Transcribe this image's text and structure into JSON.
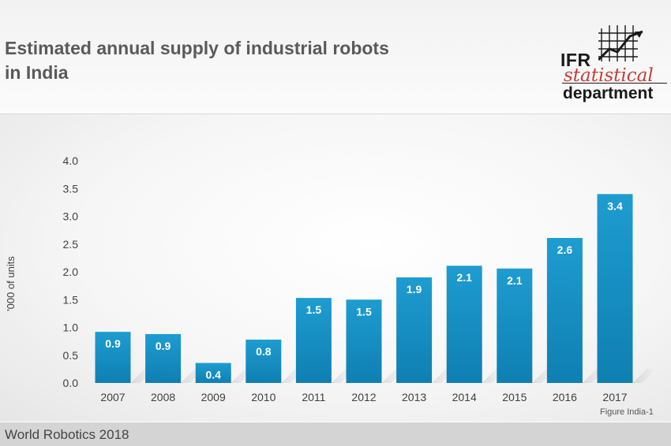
{
  "header": {
    "title_line1": "Estimated annual supply of industrial robots",
    "title_line2": "in India"
  },
  "logo": {
    "top": "IFR",
    "middle": "statistical",
    "bottom": "department"
  },
  "figure_note": "Figure India-1",
  "footer": {
    "text": "World Robotics 2018"
  },
  "colors": {
    "bar": "#1e9cd0",
    "bar_dark": "#0f7fb2",
    "text": "#404040",
    "label": "#ffffff"
  },
  "chart_data": {
    "type": "bar",
    "categories": [
      "2007",
      "2008",
      "2009",
      "2010",
      "2011",
      "2012",
      "2013",
      "2014",
      "2015",
      "2016",
      "2017"
    ],
    "values": [
      0.9,
      0.9,
      0.4,
      0.8,
      1.5,
      1.5,
      1.9,
      2.1,
      2.1,
      2.6,
      3.4
    ],
    "bar_values": [
      0.92,
      0.88,
      0.36,
      0.78,
      1.53,
      1.5,
      1.9,
      2.11,
      2.06,
      2.61,
      3.4
    ],
    "ylabel": "'000 of units",
    "ylim": [
      0,
      4.0
    ],
    "yticks": [
      "0.0",
      "0.5",
      "1.0",
      "1.5",
      "2.0",
      "2.5",
      "3.0",
      "3.5",
      "4.0"
    ],
    "grid": false,
    "legend": "none"
  }
}
